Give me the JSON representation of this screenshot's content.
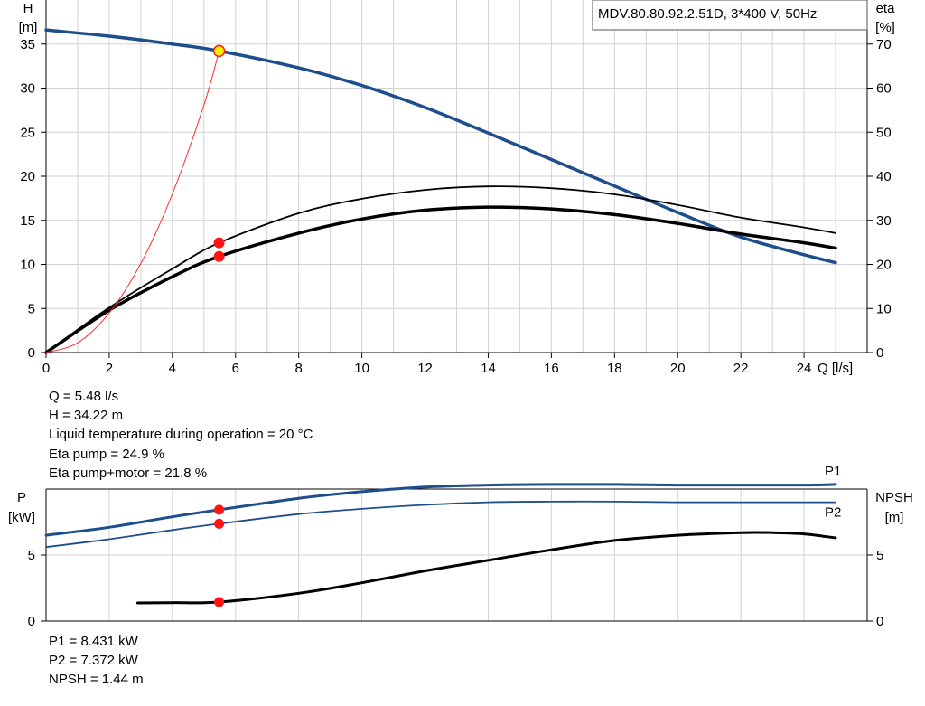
{
  "chart_data": [
    {
      "type": "line",
      "title": "MDV.80.80.92.2.51D, 3*400 V, 50Hz",
      "xlabel": "Q [l/s]",
      "ylabel_left": [
        "H",
        "[m]"
      ],
      "ylabel_right": [
        "eta",
        "[%]"
      ],
      "xlim": [
        0,
        26
      ],
      "ylim_left": [
        0,
        40
      ],
      "ylim_right": [
        0,
        80
      ],
      "x_ticks": [
        "0",
        "2",
        "4",
        "6",
        "8",
        "10",
        "12",
        "14",
        "16",
        "18",
        "20",
        "22",
        "24"
      ],
      "y_ticks_left": [
        "0",
        "5",
        "10",
        "15",
        "20",
        "25",
        "30",
        "35"
      ],
      "y_ticks_right": [
        "0",
        "10",
        "20",
        "30",
        "40",
        "50",
        "60",
        "70"
      ],
      "grid": true,
      "series": [
        {
          "axis": "left",
          "color": "#1f4e8c",
          "width": 3.5,
          "x": [
            0,
            2,
            4,
            5.48,
            8,
            10,
            12,
            14,
            16,
            18,
            20,
            22,
            24,
            25
          ],
          "y": [
            36.6,
            35.9,
            35.0,
            34.22,
            32.3,
            30.3,
            27.8,
            24.9,
            21.9,
            18.9,
            15.9,
            13.1,
            11.1,
            10.2
          ]
        },
        {
          "axis": "right",
          "color": "#000000",
          "width": 1.8,
          "x": [
            0,
            2,
            4,
            5.48,
            8,
            10,
            12,
            14,
            16,
            18,
            20,
            22,
            24,
            25
          ],
          "y": [
            0,
            10.2,
            19.0,
            24.9,
            31.6,
            34.9,
            36.9,
            37.7,
            37.3,
            35.9,
            33.5,
            30.6,
            28.4,
            27.1
          ]
        },
        {
          "axis": "right",
          "color": "#000000",
          "width": 3.5,
          "x": [
            0,
            2,
            4,
            5.48,
            8,
            10,
            12,
            14,
            16,
            18,
            20,
            22,
            24,
            25
          ],
          "y": [
            0,
            9.6,
            17.2,
            21.8,
            27.1,
            30.3,
            32.3,
            33.0,
            32.6,
            31.3,
            29.3,
            26.9,
            24.9,
            23.7
          ]
        },
        {
          "axis": "left",
          "color": "#ff2b2b",
          "width": 1,
          "x": [
            0,
            1,
            2,
            3,
            4,
            5,
            5.48
          ],
          "y": [
            0,
            1.1,
            4.5,
            10.1,
            18.0,
            28.1,
            34.22
          ]
        }
      ],
      "duty_points": [
        {
          "axis": "left",
          "x": 5.48,
          "y": 34.22,
          "color": "#ffee00"
        },
        {
          "axis": "right",
          "x": 5.48,
          "y": 24.9,
          "color": "#ff1414"
        },
        {
          "axis": "right",
          "x": 5.48,
          "y": 21.8,
          "color": "#ff1414"
        }
      ]
    },
    {
      "type": "line",
      "xlim": [
        0,
        26
      ],
      "ylabel_left": [
        "P",
        "[kW]"
      ],
      "ylabel_right": [
        "NPSH",
        "[m]"
      ],
      "ylim_left": [
        0,
        10
      ],
      "ylim_right": [
        0,
        10
      ],
      "y_ticks_left": [
        "0",
        "5"
      ],
      "y_ticks_right": [
        "0",
        "5"
      ],
      "grid": true,
      "series": [
        {
          "name": "P1",
          "axis": "left",
          "color": "#1f4e8c",
          "width": 3,
          "x": [
            0,
            2,
            4,
            5.48,
            8,
            10,
            12,
            14,
            16,
            18,
            20,
            22,
            24,
            25
          ],
          "y": [
            6.5,
            7.1,
            7.9,
            8.431,
            9.3,
            9.8,
            10.15,
            10.3,
            10.35,
            10.35,
            10.3,
            10.3,
            10.3,
            10.35
          ]
        },
        {
          "name": "P2",
          "axis": "left",
          "color": "#1f4e8c",
          "width": 1.8,
          "x": [
            0,
            2,
            4,
            5.48,
            8,
            10,
            12,
            14,
            16,
            18,
            20,
            22,
            24,
            25
          ],
          "y": [
            5.6,
            6.2,
            6.9,
            7.372,
            8.1,
            8.5,
            8.8,
            9.0,
            9.05,
            9.05,
            9.0,
            9.0,
            9.0,
            9.0
          ]
        },
        {
          "axis": "right",
          "color": "#000000",
          "width": 3,
          "x": [
            2.9,
            4,
            5.48,
            8,
            10,
            12,
            14,
            16,
            18,
            20,
            22,
            23,
            24,
            25
          ],
          "y": [
            1.37,
            1.39,
            1.44,
            2.1,
            2.9,
            3.8,
            4.6,
            5.4,
            6.1,
            6.5,
            6.7,
            6.7,
            6.6,
            6.3
          ]
        }
      ],
      "duty_points": [
        {
          "axis": "left",
          "x": 5.48,
          "y": 8.431,
          "color": "#ff1414"
        },
        {
          "axis": "left",
          "x": 5.48,
          "y": 7.372,
          "color": "#ff1414"
        },
        {
          "axis": "right",
          "x": 5.48,
          "y": 1.44,
          "color": "#ff1414"
        }
      ]
    }
  ],
  "info_top": [
    "Q = 5.48 l/s",
    "H = 34.22 m",
    "Liquid temperature during operation = 20 °C",
    "Eta pump = 24.9 %",
    "Eta pump+motor = 21.8 %"
  ],
  "info_bottom": [
    "P1 = 8.431 kW",
    "P2 = 7.372 kW",
    "NPSH = 1.44 m"
  ]
}
